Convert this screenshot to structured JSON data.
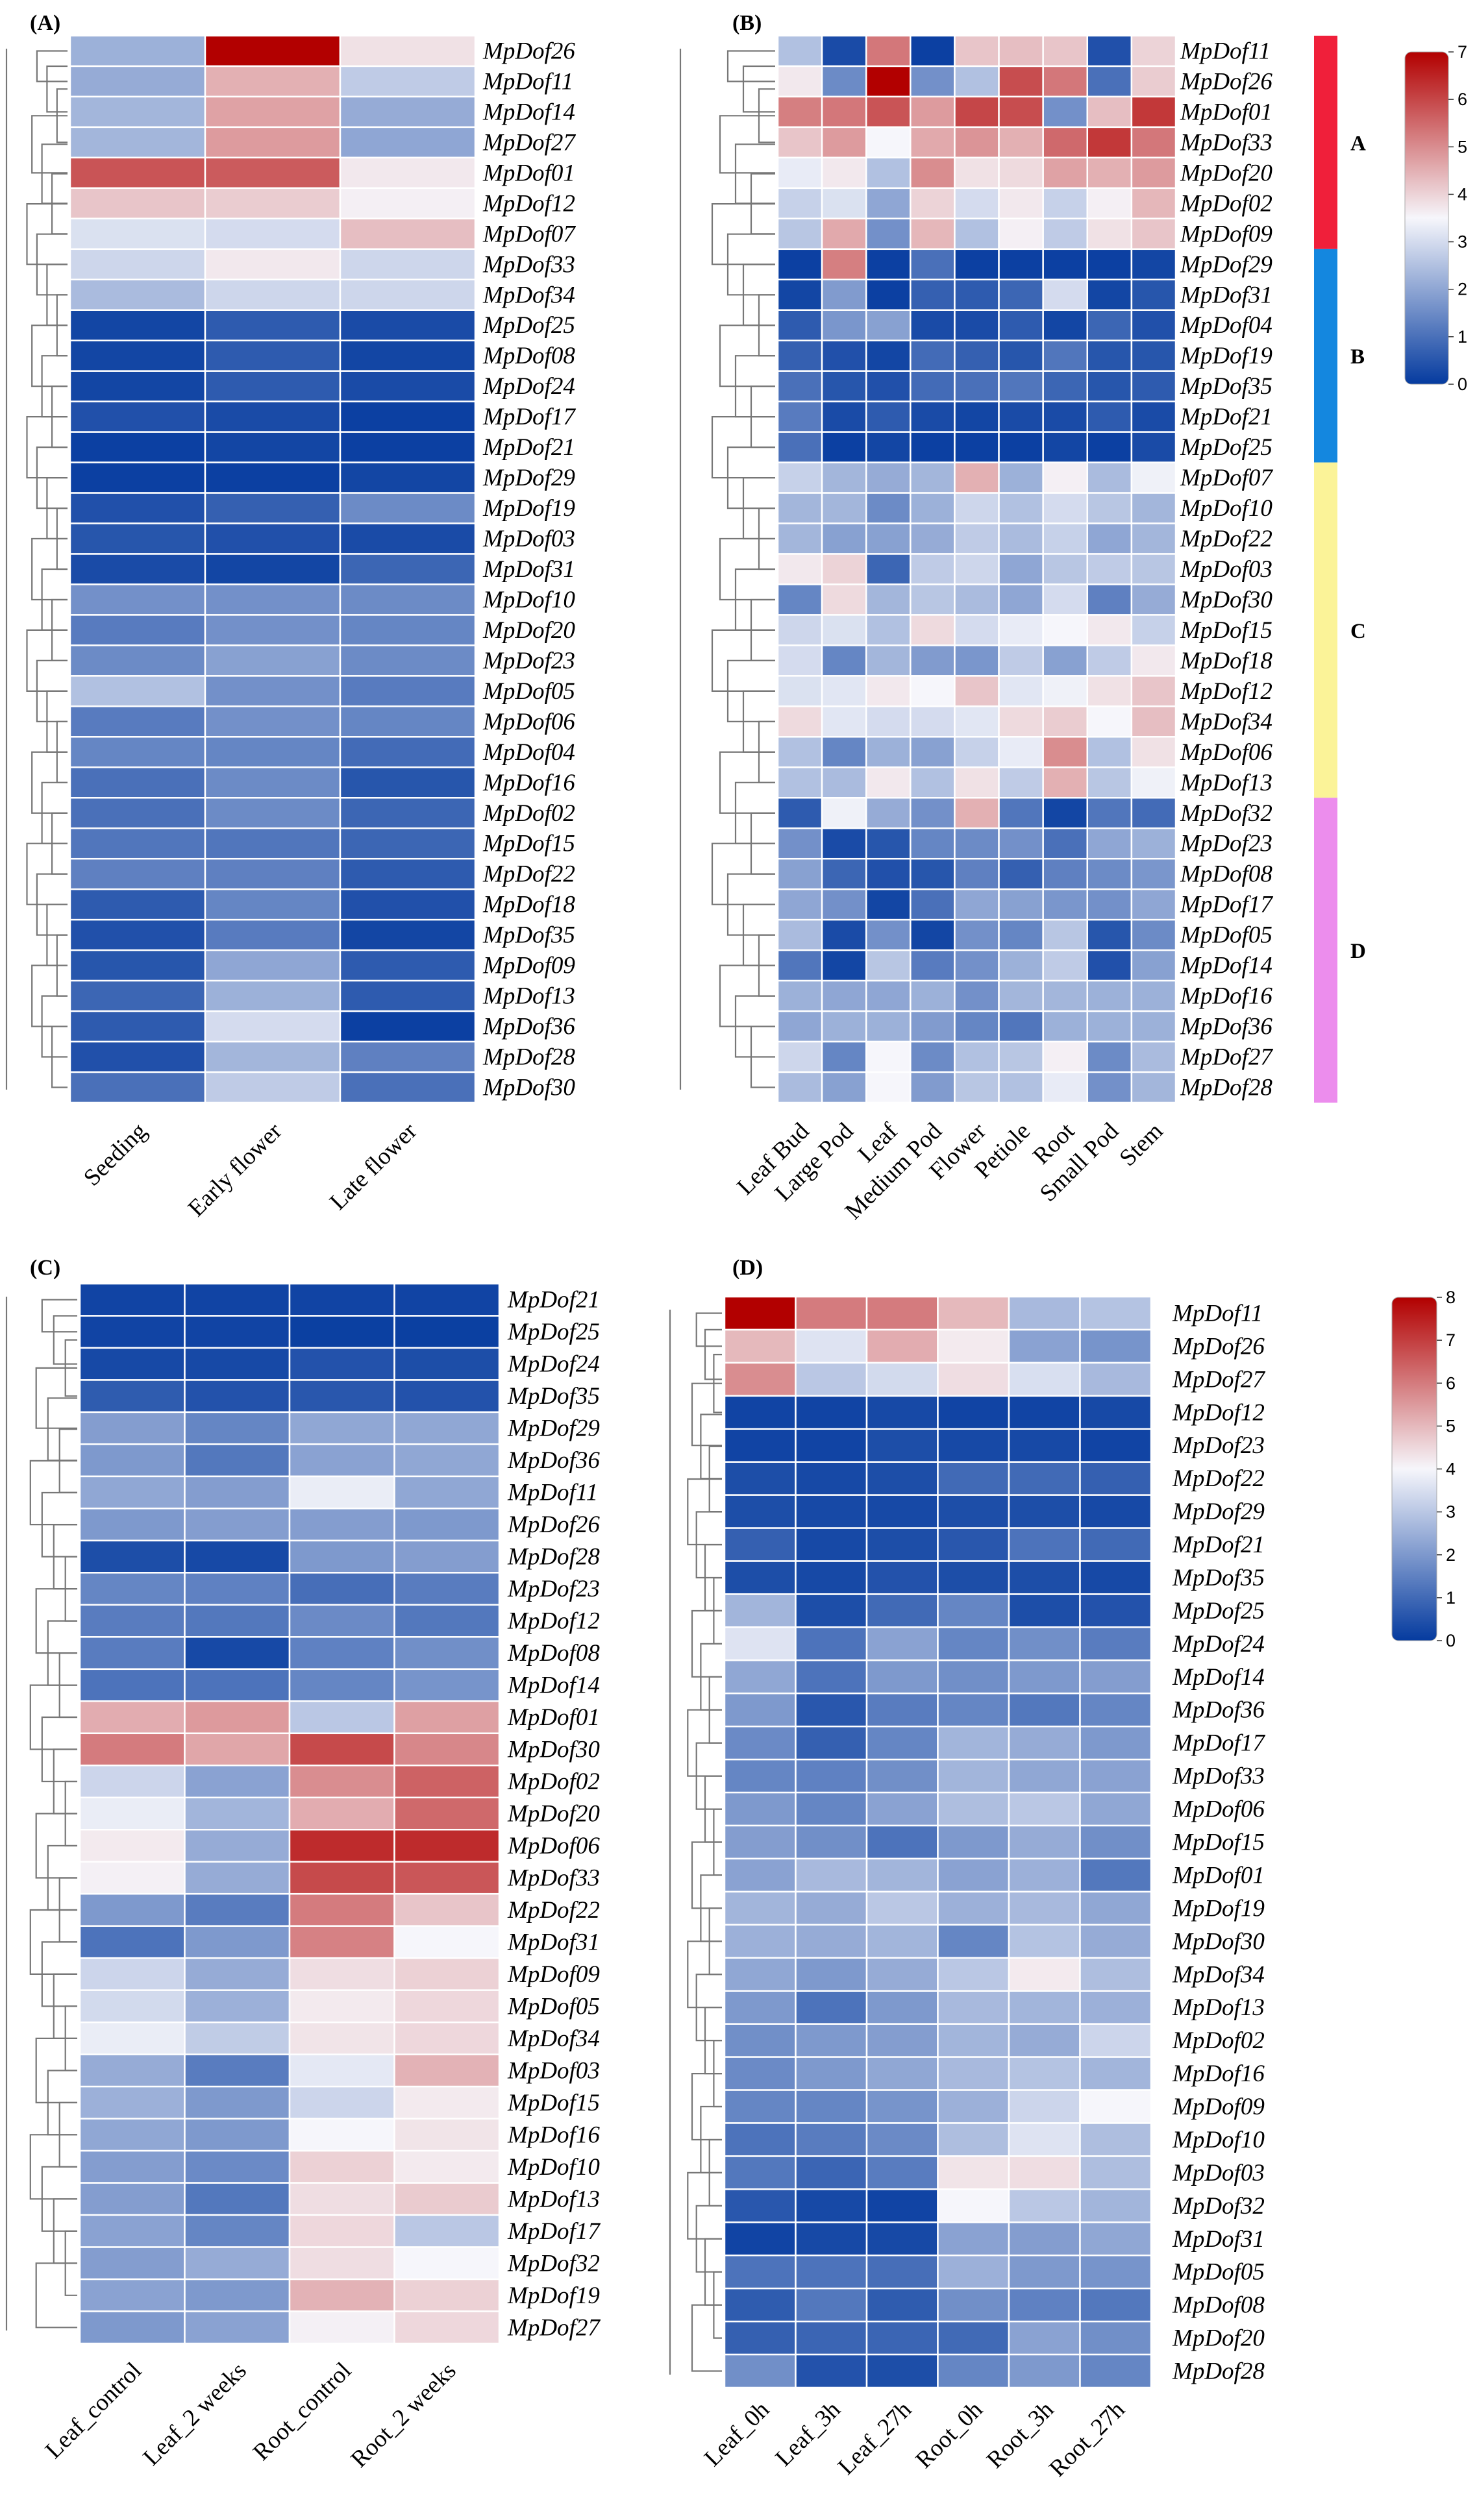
{
  "colors": {
    "low": "#053b9f",
    "mid": "#f6f6fb",
    "high": "#b20000"
  },
  "chart_data": [
    {
      "id": "A",
      "label": "(A)",
      "type": "heatmap",
      "columns": [
        "Seeding",
        "Early flower",
        "Late flower"
      ],
      "rows": [
        "MpDof26",
        "MpDof11",
        "MpDof14",
        "MpDof27",
        "MpDof01",
        "MpDof12",
        "MpDof07",
        "MpDof33",
        "MpDof34",
        "MpDof25",
        "MpDof08",
        "MpDof24",
        "MpDof17",
        "MpDof21",
        "MpDof29",
        "MpDof19",
        "MpDof03",
        "MpDof31",
        "MpDof10",
        "MpDof20",
        "MpDof23",
        "MpDof05",
        "MpDof06",
        "MpDof04",
        "MpDof16",
        "MpDof02",
        "MpDof15",
        "MpDof22",
        "MpDof18",
        "MpDof35",
        "MpDof09",
        "MpDof13",
        "MpDof36",
        "MpDof28",
        "MpDof30"
      ],
      "values": [
        [
          2.2,
          7.0,
          3.8
        ],
        [
          2.1,
          4.5,
          2.7
        ],
        [
          2.3,
          4.7,
          2.1
        ],
        [
          2.3,
          4.8,
          2.0
        ],
        [
          5.8,
          5.7,
          3.7
        ],
        [
          4.2,
          4.1,
          3.6
        ],
        [
          3.1,
          3.0,
          4.3
        ],
        [
          2.9,
          3.7,
          2.9
        ],
        [
          2.4,
          2.9,
          2.9
        ],
        [
          0.2,
          0.6,
          0.3
        ],
        [
          0.2,
          0.6,
          0.2
        ],
        [
          0.2,
          0.6,
          0.3
        ],
        [
          0.4,
          0.3,
          0.1
        ],
        [
          0.1,
          0.2,
          0.1
        ],
        [
          0.1,
          0.1,
          0.2
        ],
        [
          0.4,
          0.7,
          1.5
        ],
        [
          0.5,
          0.4,
          0.3
        ],
        [
          0.3,
          0.2,
          0.8
        ],
        [
          1.6,
          1.6,
          1.5
        ],
        [
          1.2,
          1.6,
          1.4
        ],
        [
          1.5,
          1.9,
          1.5
        ],
        [
          2.5,
          1.6,
          1.2
        ],
        [
          1.2,
          1.6,
          1.4
        ],
        [
          1.4,
          1.4,
          0.9
        ],
        [
          1.0,
          1.5,
          0.5
        ],
        [
          1.0,
          1.5,
          0.8
        ],
        [
          1.1,
          1.1,
          0.8
        ],
        [
          1.3,
          1.3,
          0.6
        ],
        [
          0.6,
          1.4,
          0.4
        ],
        [
          0.4,
          1.2,
          0.2
        ],
        [
          0.5,
          2.0,
          0.6
        ],
        [
          0.8,
          2.2,
          0.6
        ],
        [
          0.6,
          3.0,
          0.1
        ],
        [
          0.4,
          2.3,
          1.3
        ],
        [
          1.0,
          2.7,
          1.0
        ]
      ],
      "scale_max": 7,
      "scale_ticks": [],
      "clusters": []
    },
    {
      "id": "B",
      "label": "(B)",
      "type": "heatmap",
      "columns": [
        "Leaf Bud",
        "Large Pod",
        "Leaf",
        "Medium Pod",
        "Flower",
        "Petiole",
        "Root",
        "Small Pod",
        "Stem"
      ],
      "rows": [
        "MpDof11",
        "MpDof26",
        "MpDof01",
        "MpDof33",
        "MpDof20",
        "MpDof02",
        "MpDof09",
        "MpDof29",
        "MpDof31",
        "MpDof04",
        "MpDof19",
        "MpDof35",
        "MpDof21",
        "MpDof25",
        "MpDof07",
        "MpDof10",
        "MpDof22",
        "MpDof03",
        "MpDof30",
        "MpDof15",
        "MpDof18",
        "MpDof12",
        "MpDof34",
        "MpDof06",
        "MpDof13",
        "MpDof32",
        "MpDof23",
        "MpDof08",
        "MpDof17",
        "MpDof05",
        "MpDof14",
        "MpDof16",
        "MpDof36",
        "MpDof27",
        "MpDof28"
      ],
      "values": [
        [
          2.5,
          0.3,
          5.3,
          0.1,
          4.2,
          4.3,
          4.2,
          0.4,
          4.0
        ],
        [
          3.7,
          1.5,
          7.0,
          1.6,
          2.5,
          5.9,
          5.3,
          1.0,
          4.1
        ],
        [
          5.2,
          5.3,
          5.8,
          4.8,
          6.0,
          5.9,
          1.6,
          4.3,
          6.2
        ],
        [
          4.2,
          4.8,
          3.5,
          4.6,
          4.9,
          4.5,
          5.5,
          6.2,
          5.3
        ],
        [
          3.3,
          3.7,
          2.5,
          5.0,
          3.8,
          3.9,
          4.7,
          4.5,
          4.8
        ],
        [
          2.8,
          3.1,
          2.0,
          4.0,
          3.0,
          3.7,
          2.8,
          3.6,
          4.4
        ],
        [
          2.6,
          4.6,
          1.6,
          4.4,
          2.5,
          3.6,
          2.7,
          3.8,
          4.2
        ],
        [
          0.1,
          5.2,
          0.1,
          1.0,
          0.1,
          0.1,
          0.1,
          0.1,
          0.2
        ],
        [
          0.2,
          1.8,
          0.1,
          0.7,
          0.6,
          0.8,
          3.0,
          0.2,
          0.5
        ],
        [
          0.6,
          1.7,
          1.9,
          0.3,
          0.3,
          0.6,
          0.2,
          0.8,
          0.4
        ],
        [
          0.7,
          0.4,
          0.2,
          0.9,
          0.7,
          0.5,
          1.1,
          0.5,
          0.5
        ],
        [
          1.0,
          0.5,
          0.4,
          0.9,
          1.0,
          1.1,
          0.8,
          0.5,
          0.6
        ],
        [
          1.2,
          0.3,
          0.6,
          0.3,
          0.2,
          0.3,
          0.3,
          0.6,
          0.3
        ],
        [
          1.0,
          0.1,
          0.2,
          0.1,
          0.1,
          0.1,
          0.2,
          0.1,
          0.3
        ],
        [
          2.8,
          2.3,
          2.1,
          2.3,
          4.5,
          2.2,
          3.6,
          2.4,
          3.4
        ],
        [
          2.3,
          2.3,
          1.5,
          2.2,
          2.9,
          2.5,
          3.0,
          2.6,
          2.3
        ],
        [
          2.3,
          1.9,
          1.9,
          2.1,
          2.7,
          2.4,
          2.8,
          2.0,
          2.3
        ],
        [
          3.7,
          4.0,
          0.8,
          2.7,
          2.9,
          2.0,
          2.6,
          2.7,
          2.6
        ],
        [
          1.4,
          3.9,
          2.3,
          2.6,
          2.4,
          2.0,
          3.0,
          1.3,
          2.1
        ],
        [
          2.9,
          3.1,
          2.5,
          3.9,
          3.0,
          3.3,
          3.5,
          3.7,
          2.8
        ],
        [
          3.0,
          1.4,
          2.3,
          1.8,
          1.7,
          2.7,
          1.9,
          2.7,
          3.7
        ],
        [
          3.1,
          3.2,
          3.7,
          3.5,
          4.2,
          3.2,
          3.4,
          3.8,
          4.2
        ],
        [
          3.9,
          3.2,
          3.0,
          3.0,
          3.2,
          3.9,
          4.1,
          3.5,
          4.3
        ],
        [
          2.5,
          1.4,
          2.2,
          1.9,
          2.8,
          3.3,
          5.0,
          2.5,
          3.8
        ],
        [
          2.5,
          2.4,
          3.7,
          2.5,
          3.8,
          2.7,
          4.5,
          2.6,
          3.4
        ],
        [
          0.6,
          3.4,
          2.1,
          1.6,
          4.5,
          1.1,
          0.2,
          1.1,
          0.9
        ],
        [
          1.6,
          0.3,
          0.5,
          1.4,
          1.5,
          1.6,
          1.0,
          2.0,
          2.2
        ],
        [
          1.9,
          0.8,
          0.4,
          0.5,
          1.3,
          0.7,
          1.3,
          1.5,
          1.7
        ],
        [
          2.0,
          1.6,
          0.2,
          1.0,
          2.0,
          1.9,
          1.7,
          1.6,
          2.0
        ],
        [
          2.4,
          0.3,
          1.6,
          0.2,
          1.6,
          1.4,
          2.6,
          0.5,
          1.5
        ],
        [
          1.1,
          0.2,
          2.6,
          1.2,
          1.6,
          2.2,
          2.7,
          0.4,
          1.9
        ],
        [
          2.2,
          2.0,
          2.0,
          2.2,
          1.6,
          2.3,
          2.3,
          2.2,
          2.2
        ],
        [
          2.0,
          2.2,
          2.2,
          1.8,
          1.4,
          1.1,
          2.2,
          2.2,
          2.2
        ],
        [
          2.9,
          1.4,
          3.5,
          1.5,
          2.5,
          2.6,
          3.6,
          1.5,
          2.4
        ],
        [
          2.4,
          1.9,
          3.5,
          1.8,
          2.6,
          2.5,
          3.3,
          1.6,
          2.3
        ]
      ],
      "scale_max": 7,
      "scale_ticks": [
        0,
        1,
        2,
        3,
        4,
        5,
        6,
        7
      ],
      "clusters": [
        {
          "name": "A",
          "color": "#f01f3a",
          "start": 0,
          "end": 6
        },
        {
          "name": "B",
          "color": "#1487df",
          "start": 7,
          "end": 13
        },
        {
          "name": "C",
          "color": "#fbf398",
          "start": 14,
          "end": 24
        },
        {
          "name": "D",
          "color": "#ec8ded",
          "start": 25,
          "end": 34
        }
      ]
    },
    {
      "id": "C",
      "label": "(C)",
      "type": "heatmap",
      "columns": [
        "Leaf_control",
        "Leaf_2 weeks",
        "Root_control",
        "Root_2 weeks"
      ],
      "rows": [
        "MpDof21",
        "MpDof25",
        "MpDof24",
        "MpDof35",
        "MpDof29",
        "MpDof36",
        "MpDof11",
        "MpDof26",
        "MpDof28",
        "MpDof23",
        "MpDof12",
        "MpDof08",
        "MpDof14",
        "MpDof01",
        "MpDof30",
        "MpDof02",
        "MpDof20",
        "MpDof06",
        "MpDof33",
        "MpDof22",
        "MpDof31",
        "MpDof09",
        "MpDof05",
        "MpDof34",
        "MpDof03",
        "MpDof15",
        "MpDof16",
        "MpDof10",
        "MpDof13",
        "MpDof17",
        "MpDof32",
        "MpDof19",
        "MpDof27"
      ],
      "values": [
        [
          0.2,
          0.2,
          0.2,
          0.2
        ],
        [
          0.2,
          0.2,
          0.1,
          0.1
        ],
        [
          0.3,
          0.3,
          0.5,
          0.4
        ],
        [
          0.7,
          0.5,
          0.6,
          0.5
        ],
        [
          2.1,
          1.6,
          2.3,
          2.3
        ],
        [
          2.0,
          1.3,
          2.2,
          2.3
        ],
        [
          2.3,
          2.1,
          3.8,
          2.3
        ],
        [
          2.0,
          2.1,
          2.1,
          2.0
        ],
        [
          0.4,
          0.3,
          2.0,
          2.1
        ],
        [
          1.6,
          1.5,
          1.1,
          1.4
        ],
        [
          1.4,
          1.3,
          1.7,
          1.3
        ],
        [
          1.4,
          0.3,
          1.5,
          1.8
        ],
        [
          1.2,
          1.2,
          1.6,
          1.9
        ],
        [
          5.2,
          5.5,
          3.0,
          5.4
        ],
        [
          6.0,
          5.3,
          6.8,
          5.8
        ],
        [
          3.3,
          2.2,
          5.7,
          6.4
        ],
        [
          3.8,
          2.6,
          5.2,
          6.3
        ],
        [
          4.2,
          2.4,
          7.3,
          7.3
        ],
        [
          4.1,
          2.4,
          6.8,
          6.6
        ],
        [
          2.0,
          1.4,
          6.0,
          4.8
        ],
        [
          1.2,
          2.0,
          5.9,
          4.0
        ],
        [
          3.3,
          2.4,
          4.4,
          4.6
        ],
        [
          3.4,
          2.5,
          4.2,
          4.5
        ],
        [
          3.8,
          3.1,
          4.3,
          4.5
        ],
        [
          2.4,
          1.4,
          3.7,
          5.1
        ],
        [
          2.5,
          2.0,
          3.3,
          4.2
        ],
        [
          2.3,
          2.0,
          4.0,
          4.3
        ],
        [
          2.1,
          1.7,
          4.6,
          4.2
        ],
        [
          2.1,
          1.3,
          4.4,
          4.7
        ],
        [
          2.2,
          1.6,
          4.5,
          3.0
        ],
        [
          2.1,
          2.4,
          4.4,
          4.0
        ],
        [
          2.2,
          2.0,
          5.1,
          4.6
        ],
        [
          2.0,
          2.2,
          4.1,
          4.5
        ]
      ],
      "scale_max": 8,
      "scale_ticks": [],
      "clusters": []
    },
    {
      "id": "D",
      "label": "(D)",
      "type": "heatmap",
      "columns": [
        "Leaf_0h",
        "Leaf_3h",
        "Leaf_27h",
        "Root_0h",
        "Root_3h",
        "Root_27h"
      ],
      "rows": [
        "MpDof11",
        "MpDof26",
        "MpDof27",
        "MpDof12",
        "MpDof23",
        "MpDof22",
        "MpDof29",
        "MpDof21",
        "MpDof35",
        "MpDof25",
        "MpDof24",
        "MpDof14",
        "MpDof36",
        "MpDof17",
        "MpDof33",
        "MpDof06",
        "MpDof15",
        "MpDof01",
        "MpDof19",
        "MpDof30",
        "MpDof34",
        "MpDof13",
        "MpDof02",
        "MpDof16",
        "MpDof09",
        "MpDof10",
        "MpDof03",
        "MpDof32",
        "MpDof31",
        "MpDof05",
        "MpDof08",
        "MpDof20",
        "MpDof28"
      ],
      "values": [
        [
          8.0,
          6.0,
          6.0,
          5.0,
          2.7,
          2.9
        ],
        [
          5.0,
          3.6,
          5.2,
          4.2,
          2.2,
          1.9
        ],
        [
          5.7,
          3.0,
          3.4,
          4.4,
          3.5,
          2.7
        ],
        [
          0.2,
          0.2,
          0.3,
          0.2,
          0.2,
          0.3
        ],
        [
          0.2,
          0.2,
          0.4,
          0.3,
          0.3,
          0.2
        ],
        [
          0.4,
          0.3,
          0.4,
          1.0,
          1.0,
          0.8
        ],
        [
          0.4,
          0.3,
          0.3,
          0.4,
          0.4,
          0.3
        ],
        [
          0.8,
          0.3,
          0.4,
          0.6,
          1.2,
          1.0
        ],
        [
          0.4,
          0.3,
          0.5,
          0.4,
          0.4,
          0.3
        ],
        [
          2.6,
          0.4,
          1.0,
          1.6,
          0.4,
          0.5
        ],
        [
          3.6,
          1.2,
          2.2,
          1.6,
          1.8,
          1.4
        ],
        [
          2.3,
          1.2,
          2.0,
          1.8,
          2.0,
          2.1
        ],
        [
          2.0,
          0.6,
          1.4,
          1.6,
          1.3,
          1.6
        ],
        [
          1.7,
          0.8,
          1.6,
          2.6,
          2.4,
          2.0
        ],
        [
          1.6,
          1.5,
          1.8,
          2.6,
          2.3,
          2.2
        ],
        [
          2.0,
          1.6,
          2.2,
          2.8,
          3.0,
          2.3
        ],
        [
          2.1,
          1.8,
          1.2,
          2.0,
          2.4,
          1.8
        ],
        [
          2.2,
          2.7,
          2.6,
          2.2,
          2.5,
          1.3
        ],
        [
          2.6,
          2.4,
          3.0,
          2.5,
          2.7,
          2.3
        ],
        [
          2.5,
          2.4,
          2.6,
          1.6,
          2.9,
          2.4
        ],
        [
          2.3,
          2.0,
          2.4,
          3.0,
          4.2,
          2.8
        ],
        [
          2.0,
          1.2,
          2.0,
          2.7,
          2.6,
          2.5
        ],
        [
          1.8,
          2.0,
          2.1,
          2.6,
          2.4,
          3.3
        ],
        [
          1.7,
          2.0,
          2.3,
          2.7,
          2.9,
          2.6
        ],
        [
          1.6,
          1.6,
          1.9,
          2.5,
          3.3,
          4.0
        ],
        [
          1.2,
          1.4,
          1.7,
          2.8,
          3.6,
          2.8
        ],
        [
          1.3,
          0.9,
          1.4,
          4.3,
          4.4,
          2.8
        ],
        [
          0.6,
          0.3,
          0.2,
          4.0,
          3.0,
          2.6
        ],
        [
          0.2,
          0.3,
          0.3,
          2.2,
          2.1,
          2.3
        ],
        [
          1.2,
          1.2,
          1.1,
          2.5,
          2.0,
          1.9
        ],
        [
          0.7,
          1.3,
          0.7,
          1.8,
          1.5,
          1.3
        ],
        [
          0.8,
          0.9,
          0.9,
          1.0,
          2.2,
          1.8
        ],
        [
          1.8,
          0.5,
          0.4,
          1.6,
          2.0,
          1.6
        ]
      ],
      "scale_max": 8,
      "scale_ticks": [
        0,
        1,
        2,
        3,
        4,
        5,
        6,
        7,
        8
      ],
      "clusters": []
    }
  ]
}
